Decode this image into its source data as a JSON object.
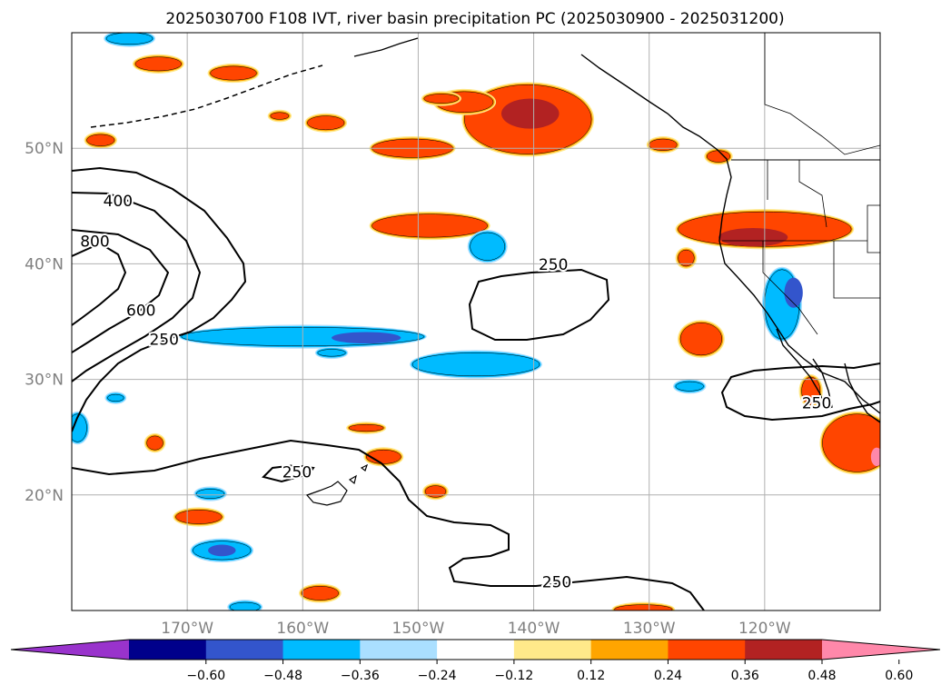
{
  "chart_data": {
    "type": "heatmap",
    "title": "2025030700 F108 IVT, river basin precipitation PC (2025030900 - 2025031200)",
    "projection": "PlateCarree",
    "xlim": [
      -180,
      -110
    ],
    "ylim": [
      10,
      60
    ],
    "grid": true,
    "x_ticks": [
      {
        "value": -170,
        "label": "170°W"
      },
      {
        "value": -160,
        "label": "160°W"
      },
      {
        "value": -150,
        "label": "150°W"
      },
      {
        "value": -140,
        "label": "140°W"
      },
      {
        "value": -130,
        "label": "130°W"
      },
      {
        "value": -120,
        "label": "120°W"
      }
    ],
    "y_ticks": [
      {
        "value": 20,
        "label": "20°N"
      },
      {
        "value": 30,
        "label": "30°N"
      },
      {
        "value": 40,
        "label": "40°N"
      },
      {
        "value": 50,
        "label": "50°N"
      }
    ],
    "colorbar": {
      "orientation": "horizontal",
      "extend": "both",
      "levels": [
        -0.72,
        -0.6,
        -0.48,
        -0.36,
        -0.24,
        -0.12,
        0.12,
        0.24,
        0.36,
        0.48,
        0.6,
        0.72
      ],
      "colors": [
        "#9933cc",
        "#00008b",
        "#3355cc",
        "#00bbff",
        "#aadfff",
        "#ffffff",
        "#ffe98a",
        "#ffa500",
        "#ff4500",
        "#b22222",
        "#ff88aa"
      ],
      "tick_labels": [
        "−0.60",
        "−0.48",
        "−0.36",
        "−0.24",
        "−0.12",
        "0.12",
        "0.24",
        "0.36",
        "0.48",
        "0.60"
      ]
    },
    "ivt_contour_levels": [
      250,
      400,
      600,
      800
    ],
    "contour_labels": [
      {
        "text": "400",
        "lon": -176,
        "lat": 45
      },
      {
        "text": "800",
        "lon": -178,
        "lat": 41.5
      },
      {
        "text": "600",
        "lon": -174,
        "lat": 35.5
      },
      {
        "text": "250",
        "lon": -172,
        "lat": 33
      },
      {
        "text": "250",
        "lon": -138.3,
        "lat": 39.5
      },
      {
        "text": "250",
        "lon": -160.5,
        "lat": 21.5
      },
      {
        "text": "250",
        "lon": -138,
        "lat": 12
      },
      {
        "text": "250",
        "lon": -115.5,
        "lat": 27.5
      }
    ],
    "precip_pc_regions": [
      {
        "category": 0.36,
        "lon": -140.5,
        "lat": 52.5,
        "rx": 5.5,
        "ry": 3
      },
      {
        "category": 0.48,
        "lon": -140.3,
        "lat": 53,
        "rx": 2.5,
        "ry": 1.3
      },
      {
        "category": 0.36,
        "lon": -149,
        "lat": 43.3,
        "rx": 5,
        "ry": 1
      },
      {
        "category": 0.36,
        "lon": -150.5,
        "lat": 50,
        "rx": 3.5,
        "ry": 0.8
      },
      {
        "category": 0.36,
        "lon": -146,
        "lat": 54,
        "rx": 2.5,
        "ry": 0.9
      },
      {
        "category": 0.36,
        "lon": -120,
        "lat": 43,
        "rx": 7.5,
        "ry": 1.5
      },
      {
        "category": 0.48,
        "lon": -121,
        "lat": 42.3,
        "rx": 3,
        "ry": 0.8
      },
      {
        "category": 0.36,
        "lon": -125.5,
        "lat": 33.5,
        "rx": 1.8,
        "ry": 1.4
      },
      {
        "category": 0.36,
        "lon": -112,
        "lat": 24.5,
        "rx": 3,
        "ry": 2.5
      },
      {
        "category": 0.6,
        "lon": -110.3,
        "lat": 23.3,
        "rx": 0.5,
        "ry": 0.8
      },
      {
        "category": 0.36,
        "lon": -172.5,
        "lat": 57.3,
        "rx": 2,
        "ry": 0.6
      },
      {
        "category": 0.36,
        "lon": -166,
        "lat": 56.5,
        "rx": 2,
        "ry": 0.6
      },
      {
        "category": 0.36,
        "lon": -158,
        "lat": 52.2,
        "rx": 1.6,
        "ry": 0.6
      },
      {
        "category": 0.36,
        "lon": -162,
        "lat": 52.8,
        "rx": 0.8,
        "ry": 0.3
      },
      {
        "category": 0.36,
        "lon": -148,
        "lat": 54.3,
        "rx": 1.5,
        "ry": 0.4
      },
      {
        "category": 0.36,
        "lon": -177.5,
        "lat": 50.7,
        "rx": 1.2,
        "ry": 0.5
      },
      {
        "category": 0.36,
        "lon": -154.5,
        "lat": 25.8,
        "rx": 1.5,
        "ry": 0.3
      },
      {
        "category": 0.36,
        "lon": -153,
        "lat": 23.3,
        "rx": 1.5,
        "ry": 0.6
      },
      {
        "category": 0.36,
        "lon": -148.5,
        "lat": 20.3,
        "rx": 0.9,
        "ry": 0.5
      },
      {
        "category": 0.36,
        "lon": -169,
        "lat": 18.1,
        "rx": 2,
        "ry": 0.6
      },
      {
        "category": 0.36,
        "lon": -158.5,
        "lat": 11.5,
        "rx": 1.6,
        "ry": 0.6
      },
      {
        "category": 0.36,
        "lon": -172.8,
        "lat": 24.5,
        "rx": 0.7,
        "ry": 0.6
      },
      {
        "category": 0.36,
        "lon": -130.5,
        "lat": 10.1,
        "rx": 2.5,
        "ry": 0.4
      },
      {
        "category": 0.36,
        "lon": -116,
        "lat": 29,
        "rx": 0.8,
        "ry": 1.2
      },
      {
        "category": 0.36,
        "lon": -128.8,
        "lat": 50.3,
        "rx": 1.2,
        "ry": 0.5
      },
      {
        "category": 0.36,
        "lon": -124,
        "lat": 49.3,
        "rx": 1,
        "ry": 0.5
      },
      {
        "category": 0.36,
        "lon": -126.8,
        "lat": 40.5,
        "rx": 0.7,
        "ry": 0.7
      }
    ],
    "negative_pc_regions": [
      {
        "category": -0.36,
        "lon": -160,
        "lat": 33.7,
        "rx": 10.5,
        "ry": 0.8
      },
      {
        "category": -0.48,
        "lon": -154.5,
        "lat": 33.6,
        "rx": 3,
        "ry": 0.5
      },
      {
        "category": -0.36,
        "lon": -145,
        "lat": 31.3,
        "rx": 5.5,
        "ry": 1
      },
      {
        "category": -0.36,
        "lon": -144,
        "lat": 41.5,
        "rx": 1.5,
        "ry": 1.2
      },
      {
        "category": -0.36,
        "lon": -118.5,
        "lat": 36.5,
        "rx": 1.5,
        "ry": 3
      },
      {
        "category": -0.48,
        "lon": -117.5,
        "lat": 37.5,
        "rx": 0.8,
        "ry": 1.3
      },
      {
        "category": -0.36,
        "lon": -167,
        "lat": 15.2,
        "rx": 2.5,
        "ry": 0.8
      },
      {
        "category": -0.48,
        "lon": -167,
        "lat": 15.2,
        "rx": 1.2,
        "ry": 0.5
      },
      {
        "category": -0.36,
        "lon": -179.5,
        "lat": 25.8,
        "rx": 0.8,
        "ry": 1.2
      },
      {
        "category": -0.36,
        "lon": -175,
        "lat": 59.5,
        "rx": 2,
        "ry": 0.5
      },
      {
        "category": -0.36,
        "lon": -168,
        "lat": 20.1,
        "rx": 1.2,
        "ry": 0.4
      },
      {
        "category": -0.36,
        "lon": -157.5,
        "lat": 32.3,
        "rx": 1.2,
        "ry": 0.3
      },
      {
        "category": -0.36,
        "lon": -176.2,
        "lat": 28.4,
        "rx": 0.7,
        "ry": 0.3
      },
      {
        "category": -0.36,
        "lon": -126.5,
        "lat": 29.4,
        "rx": 1.2,
        "ry": 0.4
      },
      {
        "category": -0.36,
        "lon": -165,
        "lat": 10.3,
        "rx": 1.3,
        "ry": 0.4
      }
    ]
  }
}
